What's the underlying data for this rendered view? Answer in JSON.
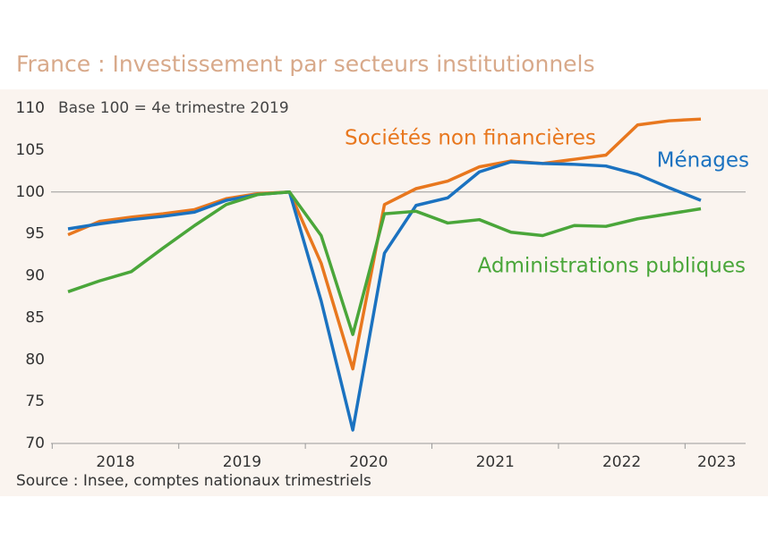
{
  "chart_data": {
    "type": "line",
    "title": "France : Investissement par secteurs institutionnels",
    "subtitle": "Base 100 = 4e trimestre 2019",
    "source": "Source : Insee, comptes nationaux trimestriels",
    "categories": [
      null,
      "2018",
      null,
      null,
      null,
      "2019",
      null,
      null,
      null,
      "2020",
      null,
      null,
      null,
      "2021",
      null,
      null,
      null,
      "2022",
      null,
      null,
      "2023"
    ],
    "reference_line": 100,
    "ylim": [
      70,
      110
    ],
    "yticks": [
      70,
      75,
      80,
      85,
      90,
      95,
      100,
      105,
      110
    ],
    "series": [
      {
        "name": "Sociétés non financières",
        "color": "#e8771e",
        "values": [
          94.9,
          96.5,
          97.0,
          97.4,
          97.9,
          99.2,
          99.8,
          100,
          91.5,
          78.9,
          98.5,
          100.4,
          101.3,
          103.0,
          103.7,
          103.4,
          103.9,
          104.4,
          108.0,
          108.5,
          108.7
        ]
      },
      {
        "name": "Ménages",
        "color": "#1b72c0",
        "values": [
          95.6,
          96.2,
          96.7,
          97.1,
          97.6,
          99.0,
          99.7,
          100,
          87.0,
          71.6,
          92.7,
          98.4,
          99.3,
          102.4,
          103.6,
          103.4,
          103.3,
          103.1,
          102.1,
          100.5,
          99.0
        ]
      },
      {
        "name": "Administrations publiques",
        "color": "#4aa63a",
        "values": [
          88.1,
          89.4,
          90.5,
          93.3,
          96.0,
          98.5,
          99.7,
          100,
          94.8,
          83.0,
          97.4,
          97.7,
          96.3,
          96.7,
          95.2,
          94.8,
          96.0,
          95.9,
          96.8,
          97.4,
          98.0
        ]
      }
    ]
  }
}
